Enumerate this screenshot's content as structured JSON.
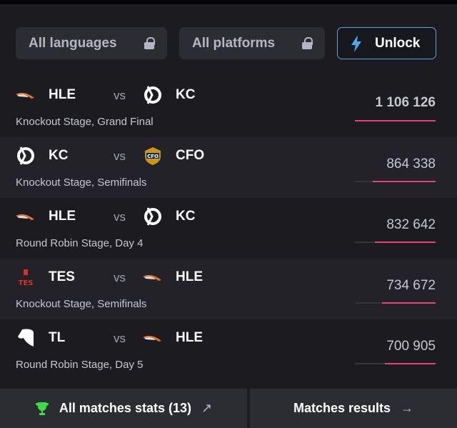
{
  "filters": {
    "languages": "All languages",
    "platforms": "All platforms",
    "unlock": "Unlock"
  },
  "vs_label": "vs",
  "matches": [
    {
      "team1": "HLE",
      "team2": "KC",
      "stage": "Knockout Stage, Grand Final",
      "viewers": "1 106 126",
      "bar_fraction": 1.0,
      "highlight": true
    },
    {
      "team1": "KC",
      "team2": "CFO",
      "stage": "Knockout Stage, Semifinals",
      "viewers": "864 338",
      "bar_fraction": 0.78
    },
    {
      "team1": "HLE",
      "team2": "KC",
      "stage": "Round Robin Stage, Day 4",
      "viewers": "832 642",
      "bar_fraction": 0.75
    },
    {
      "team1": "TES",
      "team2": "HLE",
      "stage": "Knockout Stage, Semifinals",
      "viewers": "734 672",
      "bar_fraction": 0.66
    },
    {
      "team1": "TL",
      "team2": "HLE",
      "stage": "Round Robin Stage, Day 5",
      "viewers": "700 905",
      "bar_fraction": 0.63
    }
  ],
  "footer": {
    "stats": "All matches stats (13)",
    "results": "Matches results"
  },
  "colors": {
    "accent_bar": "#e83f7a",
    "unlock_border": "#5aa6dc",
    "trophy": "#3ddc45",
    "hle": "#e8742a",
    "tes": "#e0301e"
  }
}
